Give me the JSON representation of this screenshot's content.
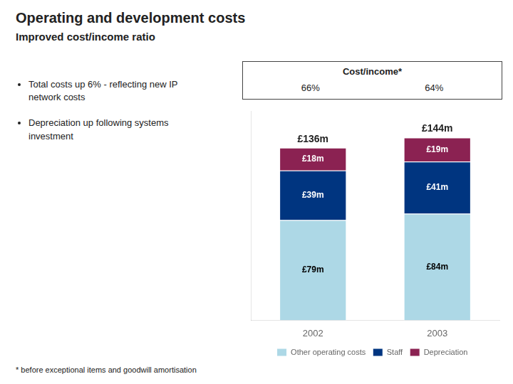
{
  "chart_data": {
    "type": "bar",
    "stacked": true,
    "title": "Operating and development costs",
    "subtitle": "Improved cost/income ratio",
    "categories": [
      "2002",
      "2003"
    ],
    "series": [
      {
        "name": "Other operating costs",
        "color": "#add8e6",
        "values": [
          79,
          84
        ],
        "value_labels": [
          "£79m",
          "£84m"
        ]
      },
      {
        "name": "Staff",
        "color": "#003580",
        "values": [
          39,
          41
        ],
        "value_labels": [
          "£39m",
          "£41m"
        ]
      },
      {
        "name": "Depreciation",
        "color": "#8b2252",
        "values": [
          18,
          19
        ],
        "value_labels": [
          "£18m",
          "£19m"
        ]
      }
    ],
    "data_labels": true,
    "totals": {
      "values": [
        136,
        144
      ],
      "value_labels": [
        "£136m",
        "£144m"
      ]
    },
    "ylim": [
      0,
      165
    ],
    "tick_labels": "x",
    "grid": false,
    "legend": "bottom",
    "cost_income": {
      "title": "Cost/income*",
      "values": [
        66,
        64
      ],
      "value_labels": [
        "66%",
        "64%"
      ]
    },
    "annotations": [
      "Total costs up 6% - reflecting new IP\nnetwork costs",
      "Depreciation up following systems\ninvestment"
    ],
    "footnote": "* before exceptional items and goodwill amortisation"
  }
}
